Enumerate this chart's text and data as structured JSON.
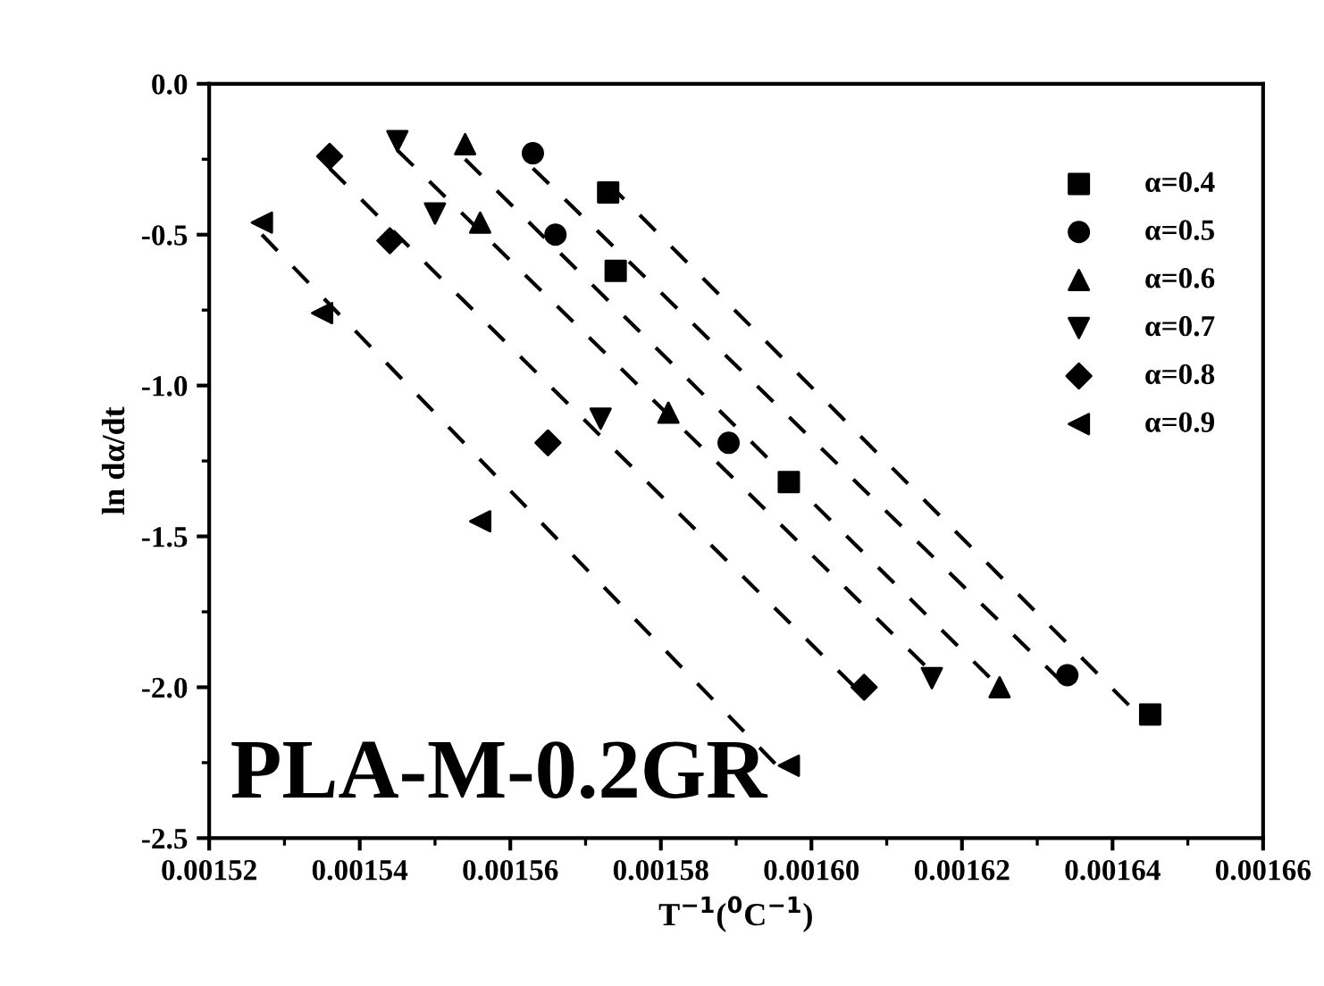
{
  "chart_data": {
    "type": "scatter",
    "xlabel": "T$^{−1}$($^{0}$C$^{−1}$)",
    "ylabel": "ln dα/dt",
    "annotations": [
      "PLA-M-0.2GR"
    ],
    "xlim": [
      0.00152,
      0.00166
    ],
    "ylim": [
      -2.5,
      0.0
    ],
    "xticks": [
      0.00152,
      0.00154,
      0.00156,
      0.00158,
      {
        "value": 0.0016,
        "label": "0.00160"
      },
      {
        "value": 0.00162,
        "label": "0.00162"
      },
      0.00164,
      {
        "value": 0.00166,
        "label": "0.00166"
      }
    ],
    "yticks": [
      {
        "value": -2.5,
        "label": "-2.5"
      },
      {
        "value": -2.0,
        "label": "-2.0"
      },
      {
        "value": -1.5,
        "label": "-1.5"
      },
      {
        "value": -1.0,
        "label": "-1.0"
      },
      {
        "value": -0.5,
        "label": "-0.5"
      },
      {
        "value": 0.0,
        "label": "0.0"
      }
    ],
    "grid": false,
    "legend": "top right",
    "series": [
      {
        "name": "α=0.4",
        "color": "#000000",
        "marker": "square",
        "x": [
          0.001573,
          0.001574,
          0.001597,
          0.001645
        ],
        "values": [
          -0.36,
          -0.62,
          -1.32,
          -2.09
        ]
      },
      {
        "name": "α=0.5",
        "color": "#000000",
        "marker": "circle",
        "x": [
          0.001563,
          0.001566,
          0.001589,
          0.001634
        ],
        "values": [
          -0.23,
          -0.5,
          -1.19,
          -1.96
        ]
      },
      {
        "name": "α=0.6",
        "color": "#000000",
        "marker": "triangle",
        "x": [
          0.001554,
          0.001556,
          0.001581,
          0.001625
        ],
        "values": [
          -0.2,
          -0.46,
          -1.09,
          -2.0
        ]
      },
      {
        "name": "α=0.7",
        "color": "#000000",
        "marker": "triangle_down",
        "x": [
          0.001545,
          0.00155,
          0.001572,
          0.001616
        ],
        "values": [
          -0.19,
          -0.43,
          -1.11,
          -1.97
        ]
      },
      {
        "name": "α=0.8",
        "color": "#000000",
        "marker": "diamond",
        "x": [
          0.001536,
          0.001544,
          0.001565,
          0.001607
        ],
        "values": [
          -0.24,
          -0.52,
          -1.19,
          -2.0
        ]
      },
      {
        "name": "α=0.9",
        "color": "#000000",
        "marker": "triangle_left",
        "x": [
          0.001527,
          0.001535,
          0.001556,
          0.001597
        ],
        "values": [
          -0.46,
          -0.76,
          -1.45,
          -2.26
        ]
      },
      {
        "type": "line",
        "line_style": "dashed",
        "color": "#000000",
        "x": [
          0.001573,
          0.001643
        ],
        "values": [
          -0.33,
          -2.08
        ]
      },
      {
        "type": "line",
        "line_style": "dashed",
        "color": "#000000",
        "x": [
          0.001563,
          0.001634
        ],
        "values": [
          -0.28,
          -2.0
        ]
      },
      {
        "type": "line",
        "line_style": "dashed",
        "color": "#000000",
        "x": [
          0.001554,
          0.001625
        ],
        "values": [
          -0.25,
          -2.0
        ]
      },
      {
        "type": "line",
        "line_style": "dashed",
        "color": "#000000",
        "x": [
          0.001545,
          0.001616
        ],
        "values": [
          -0.22,
          -1.95
        ]
      },
      {
        "type": "line",
        "line_style": "dashed",
        "color": "#000000",
        "x": [
          0.001536,
          0.001607
        ],
        "values": [
          -0.28,
          -2.03
        ]
      },
      {
        "type": "line",
        "line_style": "dashed",
        "color": "#000000",
        "x": [
          0.001527,
          0.001597
        ],
        "values": [
          -0.5,
          -2.3
        ]
      }
    ]
  }
}
